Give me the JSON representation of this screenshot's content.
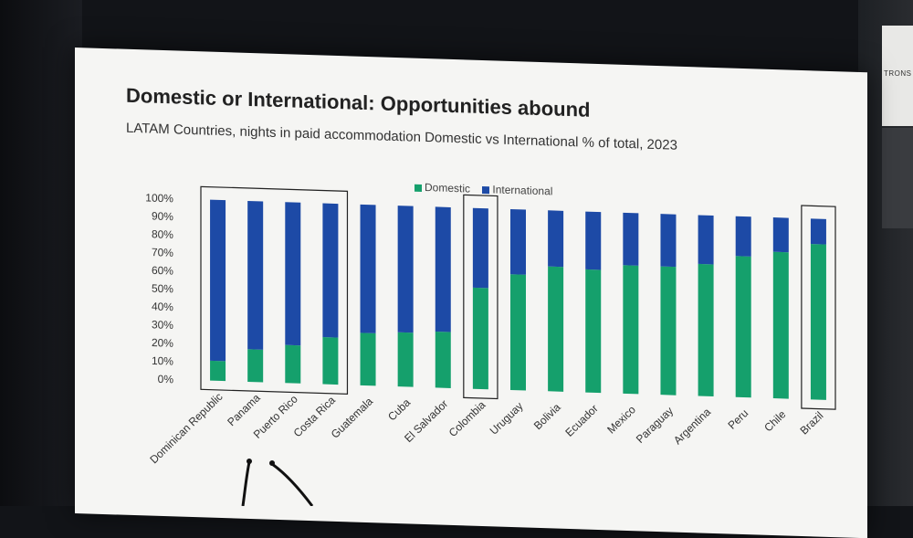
{
  "slide": {
    "title": "Domestic or International: Opportunities abound",
    "subtitle": "LATAM Countries, nights in paid accommodation  Domestic vs International % of total, 2023"
  },
  "side_panel": {
    "text": "TRONS"
  },
  "chart_data": {
    "type": "bar",
    "stacked": true,
    "title": "",
    "xlabel": "",
    "ylabel": "",
    "ylim": [
      0,
      100
    ],
    "yticks": [
      "0%",
      "10%",
      "20%",
      "30%",
      "40%",
      "50%",
      "60%",
      "70%",
      "80%",
      "90%",
      "100%"
    ],
    "legend_position": "top-center",
    "grid": false,
    "categories": [
      "Dominican Republic",
      "Panama",
      "Puerto Rico",
      "Costa Rica",
      "Guatemala",
      "Cuba",
      "El Salvador",
      "Colombia",
      "Uruguay",
      "Bolivia",
      "Ecuador",
      "Mexico",
      "Paraguay",
      "Argentina",
      "Peru",
      "Chile",
      "Brazil"
    ],
    "series": [
      {
        "name": "Domestic",
        "color": "#15a06c",
        "values": [
          11,
          18,
          21,
          26,
          29,
          30,
          31,
          56,
          64,
          69,
          68,
          71,
          71,
          73,
          78,
          81,
          86
        ]
      },
      {
        "name": "International",
        "color": "#1d4aa6",
        "values": [
          89,
          82,
          79,
          74,
          71,
          70,
          69,
          44,
          36,
          31,
          32,
          29,
          29,
          27,
          22,
          19,
          14
        ]
      }
    ],
    "highlighted_groups": [
      [
        "Dominican Republic",
        "Panama",
        "Puerto Rico",
        "Costa Rica"
      ],
      [
        "Colombia"
      ],
      [
        "Brazil"
      ]
    ]
  }
}
